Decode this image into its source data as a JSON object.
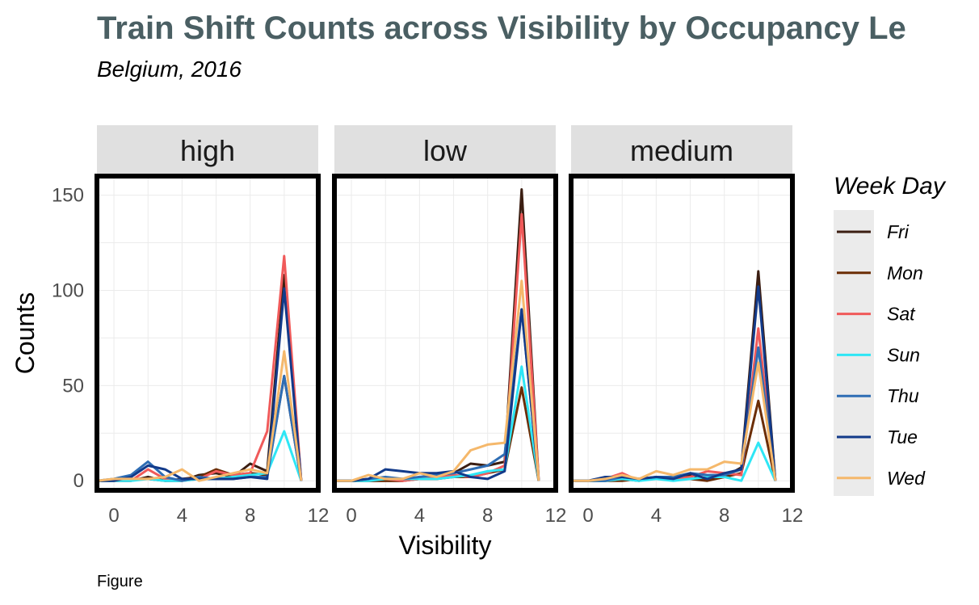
{
  "chart_data": {
    "type": "line",
    "title": "Train Shift Counts across Visibility by Occupancy Le",
    "subtitle": "Belgium, 2016",
    "xlabel": "Visibility",
    "ylabel": "Counts",
    "caption": "Figure",
    "xlim": [
      -1,
      12
    ],
    "ylim": [
      -5,
      160
    ],
    "x_ticks": [
      0,
      4,
      8,
      12
    ],
    "y_ticks": [
      0,
      50,
      100,
      150
    ],
    "grid": true,
    "legend": {
      "title": "Week Day",
      "position": "right",
      "entries": [
        {
          "name": "Fri",
          "color": "#3B1E12"
        },
        {
          "name": "Mon",
          "color": "#6B2D05"
        },
        {
          "name": "Sat",
          "color": "#F05A5A"
        },
        {
          "name": "Sun",
          "color": "#2EE6F5"
        },
        {
          "name": "Thu",
          "color": "#2E6DB4"
        },
        {
          "name": "Tue",
          "color": "#123A8A"
        },
        {
          "name": "Wed",
          "color": "#F5B86B"
        }
      ]
    },
    "x": [
      -1,
      0,
      1,
      2,
      3,
      4,
      5,
      6,
      7,
      8,
      9,
      10,
      11
    ],
    "panels": [
      {
        "name": "high",
        "series": [
          {
            "name": "Fri",
            "values": [
              0,
              0,
              0,
              2,
              0,
              0,
              3,
              4,
              2,
              9,
              5,
              108,
              0
            ]
          },
          {
            "name": "Mon",
            "values": [
              0,
              0,
              1,
              1,
              0,
              1,
              2,
              6,
              3,
              4,
              3,
              55,
              0
            ]
          },
          {
            "name": "Sat",
            "values": [
              0,
              0,
              0,
              6,
              1,
              0,
              1,
              5,
              3,
              4,
              26,
              118,
              0
            ]
          },
          {
            "name": "Sun",
            "values": [
              0,
              0,
              0,
              1,
              0,
              0,
              1,
              1,
              2,
              3,
              4,
              26,
              0
            ]
          },
          {
            "name": "Thu",
            "values": [
              0,
              1,
              3,
              10,
              2,
              0,
              2,
              1,
              1,
              2,
              2,
              55,
              0
            ]
          },
          {
            "name": "Tue",
            "values": [
              0,
              0,
              2,
              8,
              6,
              1,
              1,
              1,
              1,
              2,
              1,
              101,
              0
            ]
          },
          {
            "name": "Wed",
            "values": [
              0,
              1,
              1,
              1,
              2,
              6,
              0,
              2,
              4,
              6,
              4,
              68,
              0
            ]
          }
        ]
      },
      {
        "name": "low",
        "series": [
          {
            "name": "Fri",
            "values": [
              0,
              0,
              0,
              0,
              0,
              2,
              2,
              4,
              9,
              8,
              10,
              153,
              0
            ]
          },
          {
            "name": "Mon",
            "values": [
              0,
              0,
              0,
              0,
              0,
              1,
              1,
              2,
              2,
              4,
              6,
              49,
              0
            ]
          },
          {
            "name": "Sat",
            "values": [
              0,
              0,
              1,
              1,
              0,
              1,
              2,
              3,
              2,
              4,
              8,
              140,
              0
            ]
          },
          {
            "name": "Sun",
            "values": [
              0,
              0,
              0,
              1,
              1,
              1,
              1,
              2,
              3,
              5,
              6,
              60,
              0
            ]
          },
          {
            "name": "Thu",
            "values": [
              0,
              0,
              1,
              2,
              1,
              2,
              3,
              4,
              6,
              8,
              14,
              90,
              0
            ]
          },
          {
            "name": "Tue",
            "values": [
              0,
              0,
              1,
              6,
              5,
              4,
              4,
              5,
              2,
              1,
              5,
              90,
              0
            ]
          },
          {
            "name": "Wed",
            "values": [
              0,
              0,
              3,
              1,
              1,
              4,
              2,
              5,
              16,
              19,
              20,
              105,
              0
            ]
          }
        ]
      },
      {
        "name": "medium",
        "series": [
          {
            "name": "Fri",
            "values": [
              0,
              0,
              0,
              1,
              0,
              2,
              1,
              3,
              1,
              2,
              7,
              110,
              0
            ]
          },
          {
            "name": "Mon",
            "values": [
              0,
              0,
              0,
              0,
              1,
              1,
              1,
              1,
              0,
              2,
              4,
              42,
              0
            ]
          },
          {
            "name": "Sat",
            "values": [
              0,
              0,
              1,
              4,
              0,
              2,
              1,
              2,
              5,
              4,
              3,
              80,
              0
            ]
          },
          {
            "name": "Sun",
            "values": [
              0,
              0,
              0,
              1,
              0,
              1,
              0,
              1,
              2,
              2,
              0,
              20,
              0
            ]
          },
          {
            "name": "Thu",
            "values": [
              0,
              0,
              0,
              2,
              1,
              2,
              2,
              4,
              3,
              3,
              6,
              70,
              0
            ]
          },
          {
            "name": "Tue",
            "values": [
              0,
              0,
              2,
              2,
              1,
              2,
              1,
              4,
              1,
              4,
              6,
              102,
              0
            ]
          },
          {
            "name": "Wed",
            "values": [
              0,
              0,
              1,
              3,
              1,
              5,
              3,
              6,
              6,
              10,
              9,
              62,
              0
            ]
          }
        ]
      }
    ]
  }
}
